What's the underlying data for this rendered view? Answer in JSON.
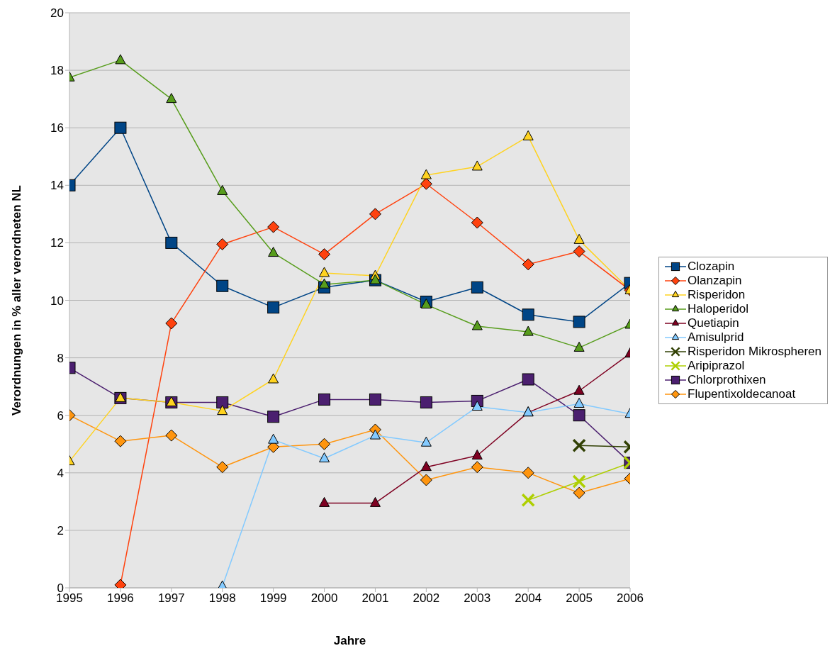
{
  "chart_data": {
    "type": "line",
    "xlabel": "Jahre",
    "ylabel": "Verordnungen in % aller verordneten NL",
    "x": [
      1995,
      1996,
      1997,
      1998,
      1999,
      2000,
      2001,
      2002,
      2003,
      2004,
      2005,
      2006
    ],
    "xlim": [
      1995,
      2006
    ],
    "xticks": [
      1995,
      1996,
      1997,
      1998,
      1999,
      2000,
      2001,
      2002,
      2003,
      2004,
      2005,
      2006
    ],
    "ylim": [
      0,
      20
    ],
    "yticks": [
      0,
      2,
      4,
      6,
      8,
      10,
      12,
      14,
      16,
      18,
      20
    ],
    "grid": "y",
    "legend": "right",
    "series": [
      {
        "name": "Clozapin",
        "color": "#004586",
        "marker": "square",
        "values": [
          14.0,
          16.0,
          12.0,
          10.5,
          9.75,
          10.45,
          10.7,
          9.95,
          10.45,
          9.5,
          9.25,
          10.6
        ]
      },
      {
        "name": "Olanzapin",
        "color": "#ff420e",
        "marker": "diamond",
        "values": [
          null,
          0.1,
          9.2,
          11.95,
          12.55,
          11.6,
          13.0,
          14.05,
          12.7,
          11.25,
          11.7,
          10.35
        ]
      },
      {
        "name": "Risperidon",
        "color": "#ffd320",
        "marker": "triangle",
        "values": [
          4.4,
          6.6,
          6.45,
          6.15,
          7.25,
          10.95,
          10.85,
          14.35,
          14.65,
          15.7,
          12.1,
          10.35
        ]
      },
      {
        "name": "Haloperidol",
        "color": "#579d1c",
        "marker": "triangle",
        "values": [
          17.75,
          18.35,
          17.0,
          13.8,
          11.65,
          10.55,
          10.7,
          9.85,
          9.1,
          8.9,
          8.35,
          9.15
        ]
      },
      {
        "name": "Quetiapin",
        "color": "#7e0021",
        "marker": "triangle",
        "values": [
          null,
          null,
          null,
          null,
          null,
          2.95,
          2.95,
          4.2,
          4.6,
          6.1,
          6.85,
          8.15
        ]
      },
      {
        "name": "Amisulprid",
        "color": "#83caff",
        "marker": "triangle",
        "values": [
          null,
          null,
          null,
          0.05,
          5.15,
          4.5,
          5.3,
          5.05,
          6.3,
          6.1,
          6.4,
          6.05
        ]
      },
      {
        "name": "Risperidon Mikrospheren",
        "color": "#314004",
        "marker": "cross",
        "values": [
          null,
          null,
          null,
          null,
          null,
          null,
          null,
          null,
          null,
          null,
          4.95,
          4.9
        ]
      },
      {
        "name": "Aripiprazol",
        "color": "#aecf00",
        "marker": "cross",
        "values": [
          null,
          null,
          null,
          null,
          null,
          null,
          null,
          null,
          null,
          3.05,
          3.7,
          4.35
        ]
      },
      {
        "name": "Chlorprothixen",
        "color": "#4b1f6f",
        "marker": "square",
        "values": [
          7.65,
          6.6,
          6.45,
          6.45,
          5.95,
          6.55,
          6.55,
          6.45,
          6.5,
          7.25,
          6.0,
          4.35
        ]
      },
      {
        "name": "Flupentixoldecanoat",
        "color": "#ff950e",
        "marker": "diamond",
        "values": [
          6.0,
          5.1,
          5.3,
          4.2,
          4.9,
          5.0,
          5.5,
          3.75,
          4.2,
          4.0,
          3.3,
          3.8
        ]
      }
    ]
  }
}
